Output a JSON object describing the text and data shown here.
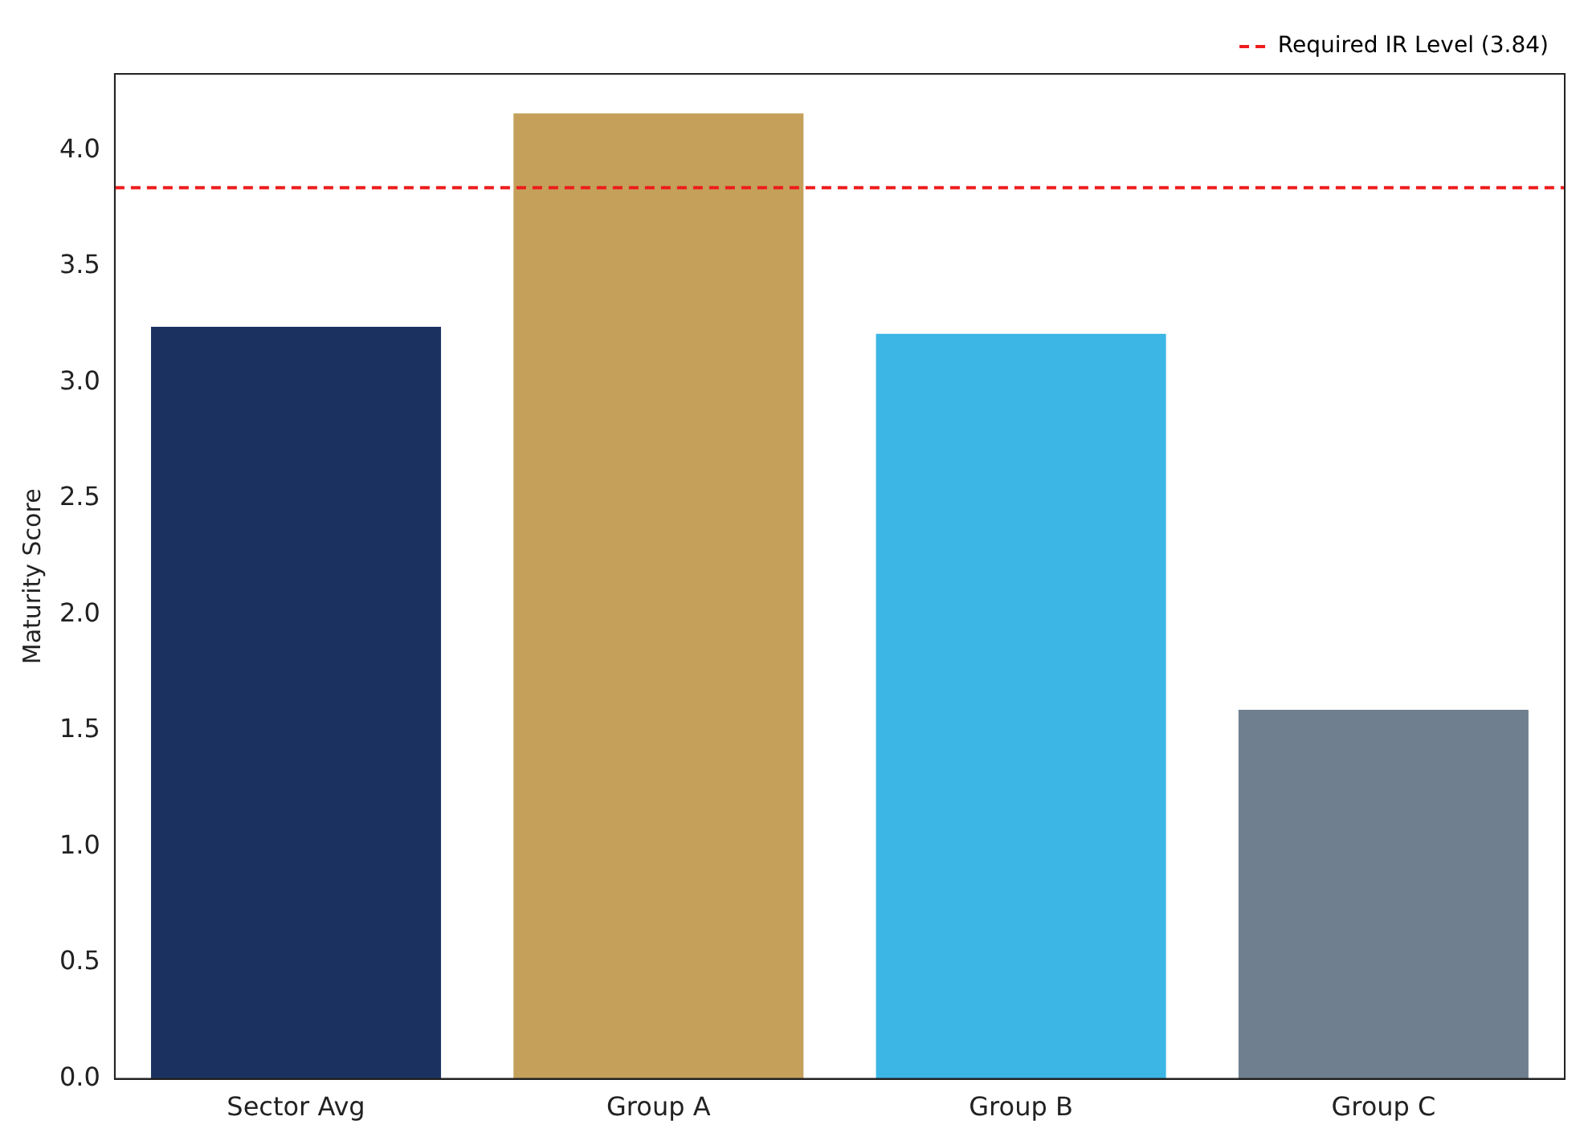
{
  "chart_data": {
    "type": "bar",
    "ylabel": "Maturity Score",
    "categories": [
      "Sector Avg",
      "Group A",
      "Group B",
      "Group C"
    ],
    "values": [
      3.24,
      4.16,
      3.21,
      1.59
    ],
    "colors": [
      "#1b3261",
      "#c4a05a",
      "#3bb6e5",
      "#6f7f8f"
    ],
    "ylim": [
      0,
      4.33
    ],
    "yticks": [
      {
        "value": 0,
        "label": "0.0"
      },
      0.5,
      {
        "value": 1,
        "label": "1.0"
      },
      1.5,
      {
        "value": 2,
        "label": "2.0"
      },
      2.5,
      {
        "value": 3,
        "label": "3.0"
      },
      3.5,
      {
        "value": 4,
        "label": "4.0"
      }
    ],
    "ref_lines": [
      {
        "axis": "y",
        "value": 3.84,
        "label": "Required IR Level (3.84)",
        "color": "#ee1c1c",
        "line_style": "dashed"
      }
    ],
    "grid": false,
    "legend": "top right"
  }
}
